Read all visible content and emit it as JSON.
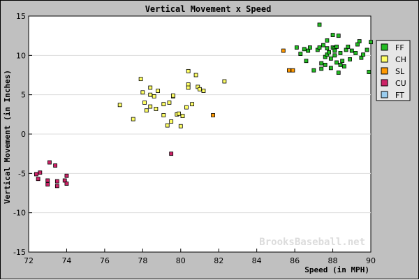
{
  "chart_data": {
    "type": "scatter",
    "title": "Vertical Movement x Speed",
    "xlabel": "Speed (in MPH)",
    "ylabel": "Vertical Movement (in Inches)",
    "xlim": [
      72,
      90
    ],
    "ylim": [
      -15,
      15
    ],
    "x_ticks": [
      "72",
      "74",
      "76",
      "78",
      "80",
      "82",
      "84",
      "86",
      "88",
      "90"
    ],
    "y_ticks": [
      "15",
      "10",
      "5",
      "0",
      "-5",
      "-10",
      "-15"
    ],
    "grid": "horizontal",
    "legend_position": "right",
    "watermark": "BrooksBaseball.net",
    "series": [
      {
        "name": "FF",
        "color": "#22bb22",
        "points": [
          [
            86.1,
            11.0
          ],
          [
            86.3,
            10.2
          ],
          [
            86.5,
            10.8
          ],
          [
            86.6,
            9.3
          ],
          [
            86.7,
            10.6
          ],
          [
            86.8,
            11.0
          ],
          [
            87.0,
            8.1
          ],
          [
            87.2,
            10.7
          ],
          [
            87.3,
            11.0
          ],
          [
            87.3,
            13.9
          ],
          [
            87.4,
            9.0
          ],
          [
            87.4,
            8.3
          ],
          [
            87.5,
            11.3
          ],
          [
            87.6,
            9.8
          ],
          [
            87.6,
            8.8
          ],
          [
            87.7,
            10.1
          ],
          [
            87.7,
            10.9
          ],
          [
            87.7,
            11.9
          ],
          [
            87.8,
            10.4
          ],
          [
            87.9,
            8.4
          ],
          [
            87.9,
            9.6
          ],
          [
            88.0,
            12.6
          ],
          [
            88.0,
            11.0
          ],
          [
            88.1,
            10.9
          ],
          [
            88.1,
            10.0
          ],
          [
            88.1,
            10.6
          ],
          [
            88.2,
            9.1
          ],
          [
            88.2,
            11.1
          ],
          [
            88.3,
            7.8
          ],
          [
            88.3,
            12.5
          ],
          [
            88.4,
            10.3
          ],
          [
            88.4,
            8.8
          ],
          [
            88.5,
            9.3
          ],
          [
            88.6,
            8.6
          ],
          [
            88.7,
            10.7
          ],
          [
            88.8,
            11.1
          ],
          [
            89.0,
            10.6
          ],
          [
            89.2,
            10.3
          ],
          [
            89.3,
            11.4
          ],
          [
            89.4,
            11.8
          ],
          [
            89.5,
            9.7
          ],
          [
            89.6,
            10.1
          ],
          [
            89.8,
            10.7
          ],
          [
            89.9,
            7.9
          ],
          [
            90.0,
            11.7
          ],
          [
            88.9,
            9.5
          ]
        ]
      },
      {
        "name": "CH",
        "color": "#ffff66",
        "points": [
          [
            76.8,
            3.7
          ],
          [
            77.5,
            1.9
          ],
          [
            77.9,
            7.0
          ],
          [
            78.0,
            5.3
          ],
          [
            78.1,
            4.0
          ],
          [
            78.2,
            3.0
          ],
          [
            78.4,
            5.9
          ],
          [
            78.4,
            3.5
          ],
          [
            78.4,
            5.0
          ],
          [
            78.6,
            4.8
          ],
          [
            78.7,
            3.2
          ],
          [
            78.8,
            5.5
          ],
          [
            79.1,
            2.4
          ],
          [
            79.1,
            3.8
          ],
          [
            79.3,
            1.1
          ],
          [
            79.4,
            4.0
          ],
          [
            79.5,
            1.6
          ],
          [
            79.6,
            4.8
          ],
          [
            79.6,
            4.9
          ],
          [
            79.8,
            2.5
          ],
          [
            79.9,
            2.6
          ],
          [
            80.0,
            1.0
          ],
          [
            80.1,
            2.3
          ],
          [
            80.3,
            3.4
          ],
          [
            80.4,
            6.3
          ],
          [
            80.4,
            5.9
          ],
          [
            80.4,
            8.0
          ],
          [
            80.6,
            3.8
          ],
          [
            80.8,
            7.5
          ],
          [
            80.9,
            6.0
          ],
          [
            81.0,
            5.7
          ],
          [
            81.2,
            5.5
          ],
          [
            82.3,
            6.7
          ]
        ]
      },
      {
        "name": "SL",
        "color": "#ff9900",
        "points": [
          [
            81.7,
            2.4
          ],
          [
            85.7,
            8.1
          ],
          [
            85.9,
            8.1
          ],
          [
            85.4,
            10.6
          ]
        ]
      },
      {
        "name": "CU",
        "color": "#cc2266",
        "points": [
          [
            72.4,
            -5.1
          ],
          [
            72.5,
            -5.7
          ],
          [
            72.6,
            -4.9
          ],
          [
            73.0,
            -5.9
          ],
          [
            73.0,
            -6.4
          ],
          [
            73.1,
            -3.6
          ],
          [
            73.4,
            -4.0
          ],
          [
            73.5,
            -6.6
          ],
          [
            73.5,
            -6.0
          ],
          [
            73.9,
            -5.9
          ],
          [
            74.0,
            -6.3
          ],
          [
            74.0,
            -5.3
          ],
          [
            79.5,
            -2.5
          ]
        ]
      },
      {
        "name": "FT",
        "color": "#99ccee",
        "points": []
      }
    ]
  }
}
